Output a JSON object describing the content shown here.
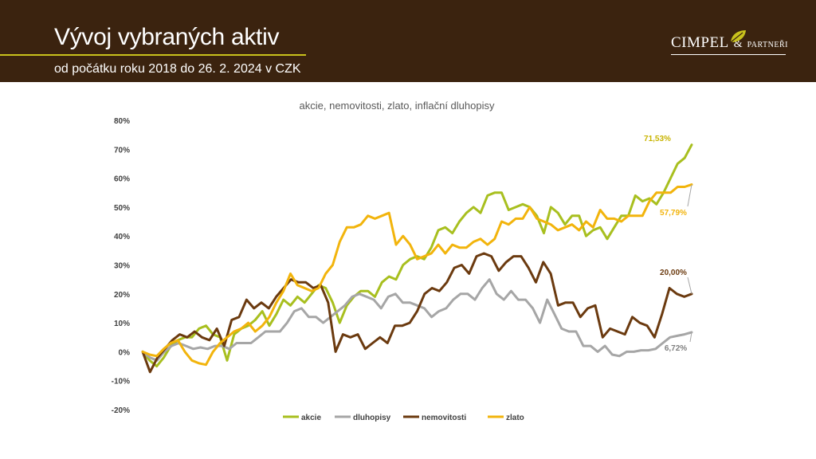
{
  "header": {
    "title": "Vývoj vybraných aktiv",
    "subtitle": "od počátku roku 2018 do 26. 2. 2024 v CZK",
    "logo_main": "CIMPEL",
    "logo_amp": "&",
    "logo_small": "PARTNEŘI"
  },
  "colors": {
    "header_bg": "#3b230f",
    "accent_line": "#c9c21c",
    "akcie": "#a8bf1f",
    "dluhopisy": "#a6a6a6",
    "nemovitosti": "#6b3a0f",
    "zlato": "#f2b40c"
  },
  "chart_data": {
    "type": "line",
    "title": "akcie, nemovitosti, zlato, inflační dluhopisy",
    "xlabel": "",
    "ylabel": "",
    "ylim": [
      -20,
      80
    ],
    "yticks": [
      "-20%",
      "-10%",
      "0%",
      "10%",
      "20%",
      "30%",
      "40%",
      "50%",
      "60%",
      "70%",
      "80%"
    ],
    "grid": false,
    "legend_position": "bottom",
    "series": [
      {
        "name": "akcie",
        "color": "#a8bf1f",
        "end_label": "71,53%",
        "values": [
          0,
          -3,
          -5,
          -2,
          2,
          4,
          5,
          5,
          8,
          9,
          6,
          5,
          -3,
          6,
          8,
          9,
          11,
          14,
          9,
          13,
          18,
          16,
          19,
          17,
          20,
          23,
          22,
          17,
          10,
          16,
          19,
          21,
          21,
          19,
          24,
          26,
          25,
          30,
          32,
          33,
          32,
          36,
          42,
          43,
          41,
          45,
          48,
          50,
          48,
          54,
          55,
          55,
          49,
          50,
          51,
          50,
          47,
          41,
          50,
          48,
          44,
          47,
          47,
          40,
          42,
          43,
          39,
          43,
          47,
          47,
          54,
          52,
          53,
          51,
          55,
          60,
          65,
          67,
          71.53
        ]
      },
      {
        "name": "dluhopisy",
        "color": "#a6a6a6",
        "end_label": "6,72%",
        "values": [
          0,
          -2,
          -3,
          0,
          2,
          3,
          2,
          1,
          1.5,
          1,
          2,
          2,
          1,
          3,
          3,
          3,
          5,
          7,
          7,
          7,
          10,
          14,
          15,
          12,
          12,
          10,
          12,
          14,
          16,
          19,
          20,
          19,
          18,
          15,
          19,
          20,
          17,
          17,
          16,
          15,
          12,
          14,
          15,
          18,
          20,
          20,
          18,
          22,
          25,
          20,
          18,
          21,
          18,
          18,
          15,
          10,
          18,
          13,
          8,
          7,
          7,
          2,
          2,
          0,
          2,
          -1,
          -1.5,
          0,
          0,
          0.5,
          0.5,
          1,
          3,
          5,
          5.5,
          6,
          6.72
        ]
      },
      {
        "name": "nemovitosti",
        "color": "#6b3a0f",
        "end_label": "20,00%",
        "values": [
          0,
          -7,
          -2,
          1,
          4,
          6,
          5,
          7,
          5,
          4,
          8,
          2,
          11,
          12,
          18,
          15,
          17,
          15,
          19,
          22,
          25,
          24,
          24,
          22,
          23,
          17,
          0,
          6,
          5,
          6,
          1,
          3,
          5,
          3,
          9,
          9,
          10,
          14,
          20,
          22,
          21,
          24,
          29,
          30,
          27,
          33,
          34,
          33,
          28,
          31,
          33,
          33,
          29,
          24,
          31,
          27,
          16,
          17,
          17,
          12,
          15,
          16,
          5,
          8,
          7,
          6,
          12,
          10,
          9,
          5,
          13,
          22,
          20,
          19,
          20
        ]
      },
      {
        "name": "zlato",
        "color": "#f2b40c",
        "end_label": "57,79%",
        "values": [
          0,
          -1,
          -1.5,
          1,
          3,
          4,
          0,
          -3,
          -4,
          -4.5,
          0,
          3,
          5,
          7,
          8,
          10,
          7,
          9,
          12,
          17,
          21,
          27,
          23,
          22,
          21,
          22,
          27,
          30,
          38,
          43,
          43,
          44,
          47,
          46,
          47,
          48,
          37,
          40,
          37,
          32,
          33,
          34,
          37,
          34,
          37,
          36,
          36,
          38,
          39,
          37,
          39,
          45,
          44,
          46,
          46,
          50,
          46,
          45,
          44,
          42,
          43,
          44,
          42,
          45,
          43,
          49,
          46,
          46,
          45,
          47,
          47,
          47,
          52,
          55,
          55,
          55,
          57,
          57,
          57.79
        ]
      }
    ]
  }
}
